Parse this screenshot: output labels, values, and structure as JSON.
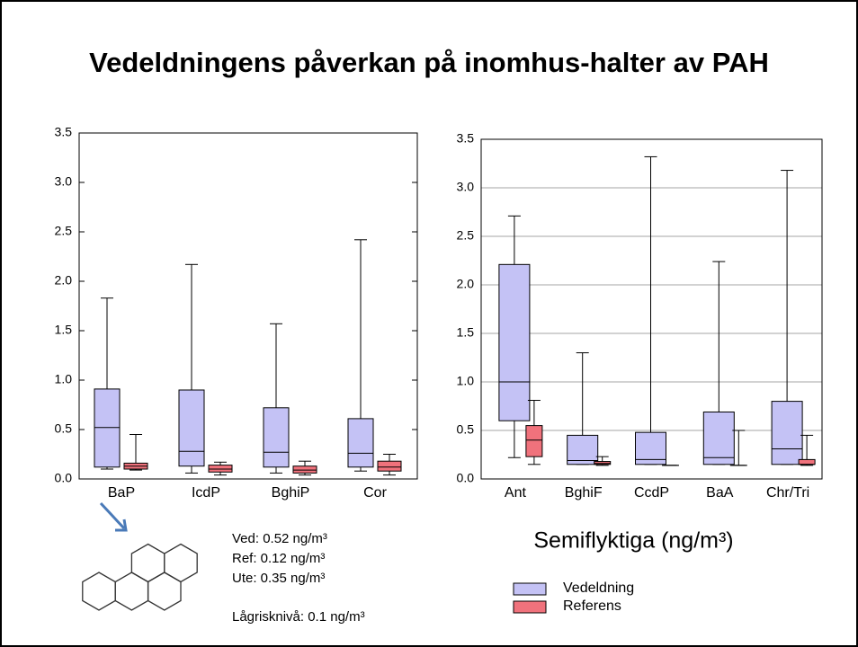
{
  "title": "Vedeldningens påverkan på inomhus-halter av PAH",
  "notes": [
    "Ved: 0.52 ng/m³",
    "Ref: 0.12 ng/m³",
    "Ute: 0.35 ng/m³",
    "Lågrisknivå: 0.1 ng/m³"
  ],
  "chart_data": [
    {
      "type": "box",
      "categories": [
        "BaP",
        "IcdP",
        "BghiP",
        "Cor"
      ],
      "ylim": [
        0,
        3.5
      ],
      "yticks": [
        {
          "value": 0,
          "label": "0.0"
        },
        0.5,
        {
          "value": 1,
          "label": "1.0"
        },
        1.5,
        {
          "value": 2,
          "label": "2.0"
        },
        2.5,
        {
          "value": 3,
          "label": "3.0"
        },
        3.5
      ],
      "grid": false,
      "series": [
        {
          "color": "#c4c2f5",
          "min": [
            0.1,
            0.06,
            0.06,
            0.08
          ],
          "q1": [
            0.12,
            0.13,
            0.12,
            0.12
          ],
          "median": [
            0.52,
            0.28,
            0.27,
            0.26
          ],
          "q3": [
            0.91,
            0.9,
            0.72,
            0.61
          ],
          "max": [
            1.83,
            2.17,
            1.57,
            2.42
          ]
        },
        {
          "color": "#f0727c",
          "min": [
            0.09,
            0.04,
            0.04,
            0.04
          ],
          "q1": [
            0.1,
            0.07,
            0.06,
            0.08
          ],
          "median": [
            0.13,
            0.1,
            0.09,
            0.12
          ],
          "q3": [
            0.16,
            0.14,
            0.13,
            0.18
          ],
          "max": [
            0.45,
            0.17,
            0.18,
            0.25
          ]
        }
      ]
    },
    {
      "type": "box",
      "categories": [
        "Ant",
        "BghiF",
        "CcdP",
        "BaA",
        "Chr/Tri"
      ],
      "xlabel": "Semiflyktiga (ng/m³)",
      "ylim": [
        0,
        3.5
      ],
      "yticks": [
        {
          "value": 0,
          "label": "0.0"
        },
        0.5,
        {
          "value": 1,
          "label": "1.0"
        },
        1.5,
        {
          "value": 2,
          "label": "2.0"
        },
        2.5,
        {
          "value": 3,
          "label": "3.0"
        },
        3.5
      ],
      "grid": true,
      "legend": "bottom-left",
      "series": [
        {
          "name": "Vedeldning",
          "color": "#c4c2f5",
          "min": [
            0.22,
            0.15,
            0.15,
            0.15,
            0.15
          ],
          "q1": [
            0.6,
            0.15,
            0.15,
            0.15,
            0.15
          ],
          "median": [
            1.0,
            0.19,
            0.2,
            0.22,
            0.31
          ],
          "q3": [
            2.21,
            0.45,
            0.48,
            0.69,
            0.8
          ],
          "max": [
            2.71,
            1.3,
            3.32,
            2.24,
            3.18
          ]
        },
        {
          "name": "Referens",
          "color": "#f0727c",
          "min": [
            0.15,
            0.14,
            0.14,
            0.14,
            0.14
          ],
          "q1": [
            0.23,
            0.15,
            0.14,
            0.14,
            0.15
          ],
          "median": [
            0.4,
            0.16,
            0.14,
            0.14,
            0.15
          ],
          "q3": [
            0.55,
            0.18,
            0.14,
            0.14,
            0.2
          ],
          "max": [
            0.81,
            0.23,
            0.14,
            0.5,
            0.45
          ]
        }
      ]
    }
  ]
}
